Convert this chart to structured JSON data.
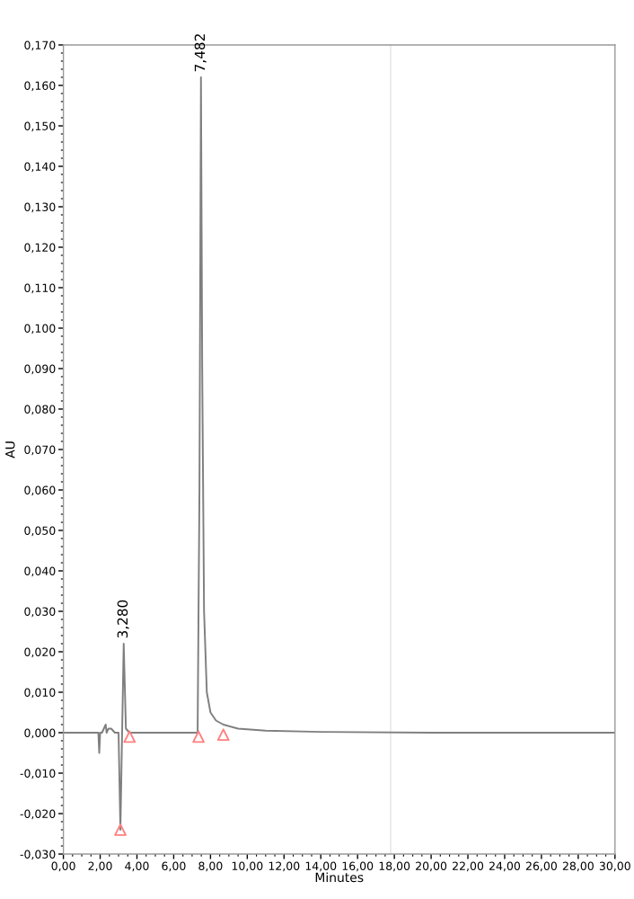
{
  "chart_data": {
    "type": "line",
    "xlabel": "Minutes",
    "ylabel": "AU",
    "xlim": [
      0,
      30
    ],
    "ylim": [
      -0.03,
      0.17
    ],
    "xticks": [
      {
        "value": 0,
        "label": "0,00"
      },
      {
        "value": 2,
        "label": "2,00"
      },
      {
        "value": 4,
        "label": "4,00"
      },
      {
        "value": 6,
        "label": "6,00"
      },
      {
        "value": 8,
        "label": "8,00"
      },
      {
        "value": 10,
        "label": "10,00"
      },
      {
        "value": 12,
        "label": "12,00"
      },
      {
        "value": 14,
        "label": "14,00"
      },
      {
        "value": 16,
        "label": "16,00"
      },
      {
        "value": 18,
        "label": "18,00"
      },
      {
        "value": 20,
        "label": "20,00"
      },
      {
        "value": 22,
        "label": "22,00"
      },
      {
        "value": 24,
        "label": "24,00"
      },
      {
        "value": 26,
        "label": "26,00"
      },
      {
        "value": 28,
        "label": "28,00"
      },
      {
        "value": 30,
        "label": "30,00"
      }
    ],
    "yticks": [
      {
        "value": -0.03,
        "label": "-0,030"
      },
      {
        "value": -0.02,
        "label": "-0,020"
      },
      {
        "value": -0.01,
        "label": "-0,010"
      },
      {
        "value": 0,
        "label": "0,000"
      },
      {
        "value": 0.01,
        "label": "0,010"
      },
      {
        "value": 0.02,
        "label": "0,020"
      },
      {
        "value": 0.03,
        "label": "0,030"
      },
      {
        "value": 0.04,
        "label": "0,040"
      },
      {
        "value": 0.05,
        "label": "0,050"
      },
      {
        "value": 0.06,
        "label": "0,060"
      },
      {
        "value": 0.07,
        "label": "0,070"
      },
      {
        "value": 0.08,
        "label": "0,080"
      },
      {
        "value": 0.09,
        "label": "0,090"
      },
      {
        "value": 0.1,
        "label": "0,100"
      },
      {
        "value": 0.11,
        "label": "0,110"
      },
      {
        "value": 0.12,
        "label": "0,120"
      },
      {
        "value": 0.13,
        "label": "0,130"
      },
      {
        "value": 0.14,
        "label": "0,140"
      },
      {
        "value": 0.15,
        "label": "0,150"
      },
      {
        "value": 0.16,
        "label": "0,160"
      },
      {
        "value": 0.17,
        "label": "0,170"
      }
    ],
    "grid": false,
    "legend": false,
    "series": [
      {
        "color": "#7f7f7f",
        "marker": "none",
        "x": [
          0,
          1.0,
          1.9,
          1.95,
          2.0,
          2.1,
          2.3,
          2.35,
          2.45,
          2.6,
          2.8,
          3.0,
          3.1,
          3.28,
          3.4,
          3.6,
          4.5,
          7.3,
          7.4,
          7.482,
          7.55,
          7.65,
          7.8,
          8.0,
          8.3,
          8.7,
          9.5,
          11,
          14,
          20,
          30
        ],
        "values": [
          0,
          0,
          0,
          -0.005,
          0,
          0,
          0.002,
          0,
          0.001,
          0.001,
          0,
          0,
          -0.024,
          0.022,
          0.001,
          0,
          0,
          0,
          0.06,
          0.162,
          0.09,
          0.03,
          0.01,
          0.005,
          0.003,
          0.002,
          0.001,
          0.0005,
          0.0002,
          0,
          0
        ]
      },
      {
        "type": "scatter",
        "color": "#ff8080",
        "marker": "triangle",
        "x": [
          3.1,
          3.6,
          7.35,
          8.7
        ],
        "values": [
          -0.024,
          -0.001,
          -0.001,
          -0.0005
        ]
      }
    ],
    "ref_lines": [
      {
        "axis": "x",
        "value": 17.8,
        "color": "#e8e8e8",
        "line_style": "solid"
      }
    ],
    "annotations": [
      {
        "text": "3,280",
        "x": 3.28,
        "y": 0.022
      },
      {
        "text": "7,482",
        "x": 7.482,
        "y": 0.162
      }
    ]
  }
}
